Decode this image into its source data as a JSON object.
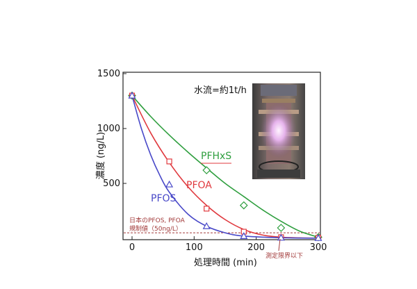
{
  "chart_data": {
    "type": "line",
    "xlabel": "処理時間 (min)",
    "ylabel": "濃度 (ng/L)",
    "xlim": [
      0,
      300
    ],
    "ylim": [
      0,
      1500
    ],
    "x_ticks": [
      "0",
      "100",
      "200",
      "300"
    ],
    "y_ticks": [
      "500",
      "1000",
      "1500"
    ],
    "grid": false,
    "series": [
      {
        "name": "PFHxS",
        "color": "#2e9e3e",
        "marker": "diamond",
        "x": [
          0,
          120,
          180,
          240,
          300
        ],
        "y": [
          1300,
          620,
          300,
          95,
          10
        ],
        "curve": [
          [
            0,
            1300
          ],
          [
            30,
            1110
          ],
          [
            60,
            940
          ],
          [
            90,
            785
          ],
          [
            120,
            640
          ],
          [
            150,
            500
          ],
          [
            180,
            380
          ],
          [
            210,
            260
          ],
          [
            240,
            155
          ],
          [
            270,
            65
          ],
          [
            300,
            10
          ]
        ]
      },
      {
        "name": "PFOA",
        "color": "#e0393e",
        "marker": "square",
        "x": [
          0,
          60,
          120,
          180,
          240,
          300
        ],
        "y": [
          1300,
          700,
          270,
          60,
          10,
          5
        ],
        "curve": [
          [
            0,
            1300
          ],
          [
            30,
            960
          ],
          [
            60,
            690
          ],
          [
            90,
            470
          ],
          [
            120,
            300
          ],
          [
            150,
            170
          ],
          [
            180,
            80
          ],
          [
            210,
            30
          ],
          [
            240,
            10
          ],
          [
            270,
            4
          ],
          [
            300,
            2
          ]
        ]
      },
      {
        "name": "PFOS",
        "color": "#4848c8",
        "marker": "triangle",
        "x": [
          0,
          60,
          120,
          180,
          240,
          300
        ],
        "y": [
          1300,
          490,
          110,
          20,
          5,
          2
        ],
        "curve": [
          [
            0,
            1300
          ],
          [
            15,
            1000
          ],
          [
            30,
            760
          ],
          [
            45,
            570
          ],
          [
            60,
            420
          ],
          [
            90,
            220
          ],
          [
            120,
            110
          ],
          [
            150,
            50
          ],
          [
            180,
            20
          ],
          [
            240,
            5
          ],
          [
            300,
            1
          ]
        ]
      }
    ],
    "reference_line": {
      "y": 50,
      "color": "#a23a3a"
    },
    "annotations": {
      "regulation_line1": "日本のPFOS, PFOA",
      "regulation_line2": "規制値（50ng/L）",
      "detection_limit": "測定限界以下",
      "flow_rate": "水流=約1t/h"
    }
  },
  "photo": {
    "description_icon": "plasma-reactor-photo",
    "glow_color": "#e8b8e8"
  }
}
